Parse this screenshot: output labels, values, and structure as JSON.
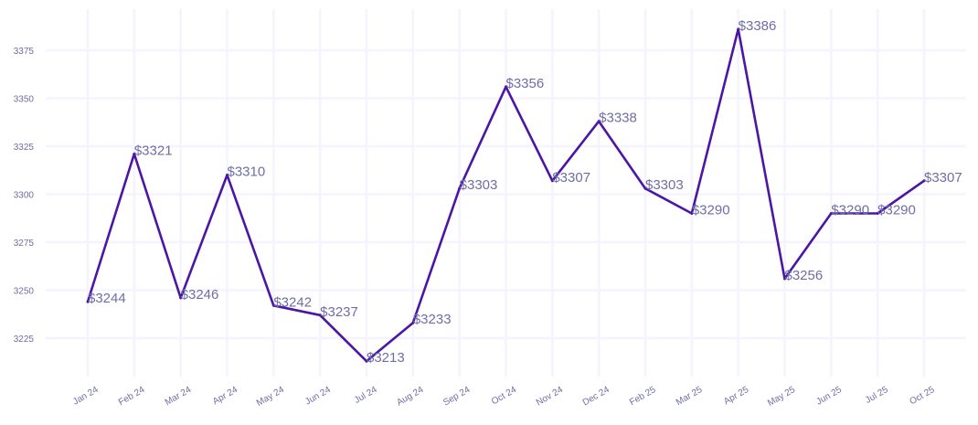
{
  "chart_data": {
    "type": "line",
    "title": "",
    "xlabel": "",
    "ylabel": "",
    "categories": [
      "Jan 24",
      "Feb 24",
      "Mar 24",
      "Apr 24",
      "May 24",
      "Jun 24",
      "Jul 24",
      "Aug 24",
      "Sep 24",
      "Oct 24",
      "Nov 24",
      "Dec 24",
      "Feb 25",
      "Mar 25",
      "Apr 25",
      "May 25",
      "Jun 25",
      "Jul 25",
      "Oct 25"
    ],
    "series": [
      {
        "name": "value",
        "values": [
          3244,
          3321,
          3246,
          3310,
          3242,
          3237,
          3213,
          3233,
          3303,
          3356,
          3307,
          3338,
          3303,
          3290,
          3386,
          3256,
          3290,
          3290,
          3307
        ],
        "labels": [
          "$3244",
          "$3321",
          "$3246",
          "$3310",
          "$3242",
          "$3237",
          "$3213",
          "$3233",
          "$3303",
          "$3356",
          "$3307",
          "$3338",
          "$3303",
          "$3290",
          "$3386",
          "$3256",
          "$3290",
          "$3290",
          "$3307"
        ]
      }
    ],
    "yticks": [
      "3225",
      "3250",
      "3275",
      "3300",
      "3325",
      "3350",
      "3375"
    ],
    "ylim": [
      3200,
      3390
    ],
    "grid": true,
    "colors": {
      "line": "#4b16a6",
      "text": "#6e6ea6",
      "grid": "#f5f3fd"
    }
  }
}
